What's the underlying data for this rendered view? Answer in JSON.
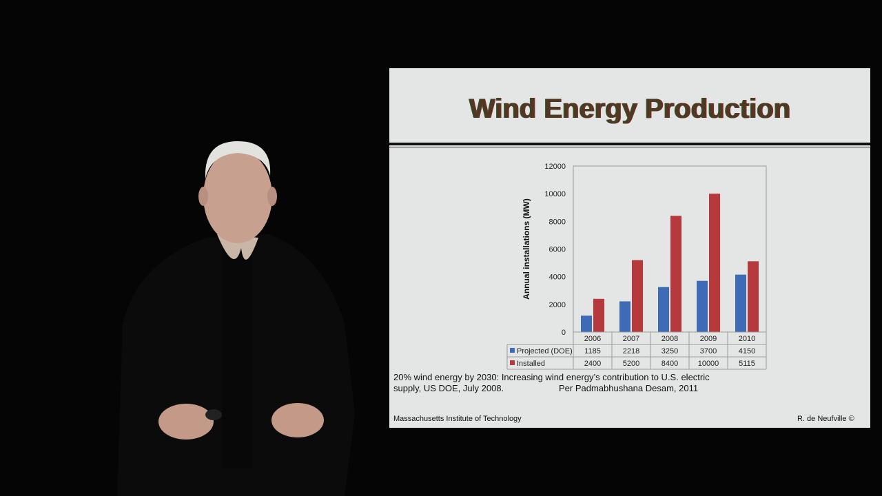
{
  "slide": {
    "title": "Wind Energy Production",
    "caption_line1": "20% wind energy by 2030: Increasing wind energy’s contribution to U.S. electric",
    "caption_line2": "supply, US DOE, July 2008.",
    "caption_credit": "Per Padmabhushana Desam, 2011",
    "footer_left": "Massachusetts Institute of Technology",
    "footer_right": "R. de Neufville   ©"
  },
  "colors": {
    "background": "#050505",
    "slide": "#e4e5e5",
    "projected": "#3d6bb5",
    "installed": "#b7393b"
  },
  "chart_data": {
    "type": "bar",
    "categories": [
      "2006",
      "2007",
      "2008",
      "2009",
      "2010"
    ],
    "series": [
      {
        "name": "Projected (DOE)",
        "values": [
          1185,
          2218,
          3250,
          3700,
          4150
        ],
        "color": "#3d6bb5"
      },
      {
        "name": "Installed",
        "values": [
          2400,
          5200,
          8400,
          10000,
          5115
        ],
        "color": "#b7393b"
      }
    ],
    "ylabel": "Annual installations (MW)",
    "ylim": [
      0,
      12000
    ],
    "yticks": [
      0,
      2000,
      4000,
      6000,
      8000,
      10000,
      12000
    ],
    "grid": false,
    "legend": "data table below x-axis"
  }
}
